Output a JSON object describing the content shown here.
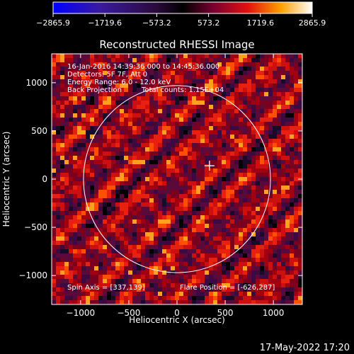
{
  "chart_data": {
    "type": "heatmap",
    "title": "Reconstructed RHESSI Image",
    "xlabel": "Heliocentric X (arcsec)",
    "ylabel": "Heliocentric Y (arcsec)",
    "xlim": [
      -1300,
      1300
    ],
    "ylim": [
      -1300,
      1300
    ],
    "x_ticks": [
      -1000,
      -500,
      0,
      500,
      1000
    ],
    "y_ticks": [
      -1000,
      -500,
      0,
      500,
      1000
    ],
    "colorbar": {
      "min": -2865.9,
      "max": 2865.9,
      "tick_values": [
        -2865.9,
        -1719.6,
        -573.2,
        573.2,
        1719.6,
        2865.9
      ],
      "tick_labels": [
        "−2865.9",
        "−1719.6",
        "−573.2",
        "573.2",
        "1719.6",
        "2865.9"
      ]
    },
    "info": {
      "time_range": "16-Jan-2016 14:39:36.000 to 14:45:36.000",
      "detectors": "Detectors: 5F 7F, Att 0",
      "energy": "Energy Range: 6.0 - 12.0 keV",
      "method": "Back Projection",
      "counts": "Total counts: 1.15E+04"
    },
    "spin_axis": "Spin Axis = [337,139]",
    "flare_position": "Flare Position = [-626,287]",
    "solar_disk": {
      "center": [
        0,
        0
      ],
      "radius": 970
    },
    "marker": {
      "x": 337,
      "y": 139
    }
  },
  "footer": {
    "date": "17-May-2022 17:20"
  }
}
